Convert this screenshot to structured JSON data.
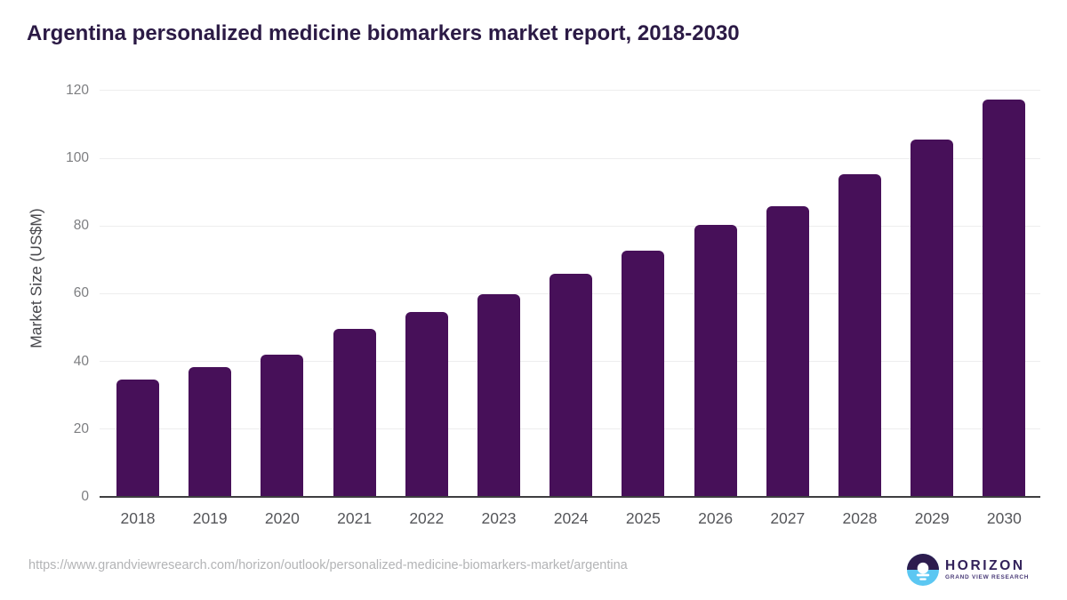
{
  "chart_data": {
    "type": "bar",
    "title": "Argentina personalized medicine biomarkers market report, 2018-2030",
    "categories": [
      "2018",
      "2019",
      "2020",
      "2021",
      "2022",
      "2023",
      "2024",
      "2025",
      "2026",
      "2027",
      "2028",
      "2029",
      "2030"
    ],
    "values": [
      34.4,
      38.1,
      41.8,
      49.4,
      54.4,
      59.7,
      65.7,
      72.5,
      80.2,
      85.7,
      95.2,
      105.5,
      117.3
    ],
    "xlabel": "",
    "ylabel": "Market Size (US$M)",
    "ylim": [
      0,
      120
    ],
    "yticks": [
      0,
      20,
      40,
      60,
      80,
      100,
      120
    ],
    "grid": true,
    "legend": false,
    "bar_color": "#471059"
  },
  "footer": {
    "source_url": "https://www.grandviewresearch.com/horizon/outlook/personalized-medicine-biomarkers-market/argentina"
  },
  "logo": {
    "wordmark": "HORIZON",
    "subtext": "GRAND VIEW RESEARCH"
  },
  "colors": {
    "title": "#2b1a45",
    "bar": "#471059",
    "gridline": "#ededee",
    "axis_line": "#3e3e40",
    "y_tick": "#7d7e81",
    "x_tick": "#55565a",
    "url": "#b3b4b6",
    "logo_navy": "#2d1c4e",
    "logo_blue": "#5cc7f2"
  }
}
